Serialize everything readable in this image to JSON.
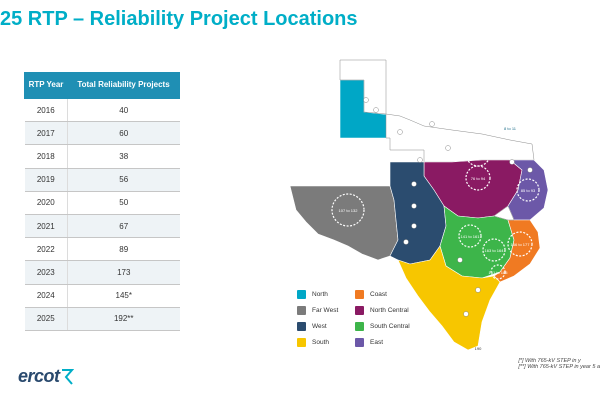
{
  "title": "25 RTP – Reliability Project Locations",
  "table": {
    "headers": [
      "RTP Year",
      "Total Reliability Projects"
    ],
    "rows": [
      {
        "year": "2016",
        "projects": "40"
      },
      {
        "year": "2017",
        "projects": "60"
      },
      {
        "year": "2018",
        "projects": "38"
      },
      {
        "year": "2019",
        "projects": "56"
      },
      {
        "year": "2020",
        "projects": "50"
      },
      {
        "year": "2021",
        "projects": "67"
      },
      {
        "year": "2022",
        "projects": "89"
      },
      {
        "year": "2023",
        "projects": "173"
      },
      {
        "year": "2024",
        "projects": "145*"
      },
      {
        "year": "2025",
        "projects": "192**"
      }
    ]
  },
  "legend": [
    {
      "label": "North",
      "color": "#00A7C6"
    },
    {
      "label": "Coast",
      "color": "#F07A22"
    },
    {
      "label": "Far West",
      "color": "#7B7B7B"
    },
    {
      "label": "North Central",
      "color": "#8A1A63"
    },
    {
      "label": "West",
      "color": "#2B4C6F"
    },
    {
      "label": "South Central",
      "color": "#3DB54A"
    },
    {
      "label": "South",
      "color": "#F7C600"
    },
    {
      "label": "East",
      "color": "#6C58A8"
    }
  ],
  "footnotes": [
    "[*] With 765-kV STEP in y",
    "[**] With 765-kV STEP in year 5 a"
  ],
  "logo": {
    "text": "ercot"
  },
  "map_labels": {
    "far_west_cluster": "107 to 132",
    "north_central_cluster": "51 to 64",
    "north_central_a": "11 to 42",
    "north_central_b": "76 to 94",
    "south_central_a": "141 to 161",
    "south_central_b": "163 to 164",
    "coast_cluster": "166 to 177",
    "coast_small": "181 to 185",
    "east_cluster": "85 to 93",
    "north_top": "8 to 11",
    "south_tip": "190"
  }
}
